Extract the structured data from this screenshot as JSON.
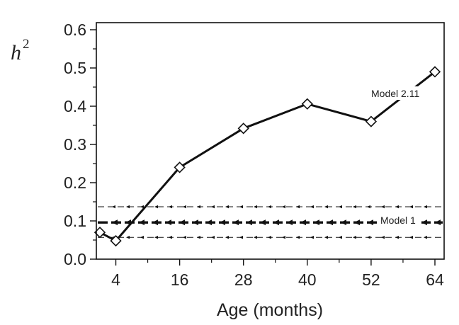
{
  "chart_data": {
    "type": "line",
    "xlabel": "Age (months)",
    "ylabel": "h",
    "ylabel_superscript": "2",
    "x_ticks": [
      4,
      16,
      28,
      40,
      52,
      64
    ],
    "y_ticks": [
      "0.0",
      "0.1",
      "0.2",
      "0.3",
      "0.4",
      "0.5",
      "0.6"
    ],
    "xlim": [
      0,
      65
    ],
    "ylim": [
      0,
      0.62
    ],
    "series": [
      {
        "name": "Model 2.11",
        "style": "solid-diamond",
        "x": [
          1,
          4,
          16,
          28,
          40,
          52,
          64
        ],
        "y": [
          0.07,
          0.048,
          0.24,
          0.342,
          0.406,
          0.36,
          0.49
        ]
      },
      {
        "name": "Model 1",
        "style": "thick-dashed-arrows",
        "y": 0.096
      }
    ],
    "confidence_band": {
      "lower": 0.057,
      "upper": 0.137
    },
    "annotations": [
      {
        "text": "Model 2.11",
        "series": "Model 2.11"
      },
      {
        "text": "Model 1",
        "series": "Model 1"
      }
    ],
    "colors": {
      "line": "#111111",
      "marker_fill": "#ffffff",
      "axis": "#111111"
    },
    "grid": false,
    "legend": "none"
  }
}
